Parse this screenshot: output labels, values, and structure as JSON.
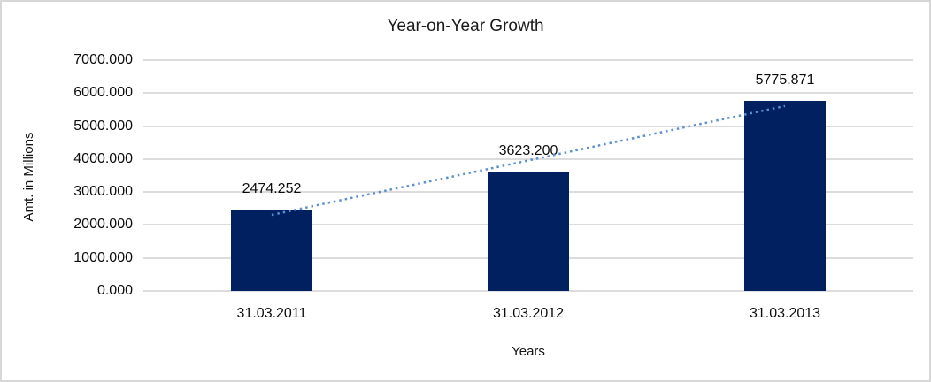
{
  "chart_data": {
    "type": "bar",
    "title": "Year-on-Year Growth",
    "xlabel": "Years",
    "ylabel": "Amt. in Millions",
    "categories": [
      "31.03.2011",
      "31.03.2012",
      "31.03.2013"
    ],
    "values": [
      2474.252,
      3623.2,
      5775.871
    ],
    "data_labels": [
      "2474.252",
      "3623.200",
      "5775.871"
    ],
    "ylim": [
      0,
      7000
    ],
    "ytick_labels": [
      "7000.000",
      "6000.000",
      "5000.000",
      "4000.000",
      "3000.000",
      "2000.000",
      "1000.000",
      "0.000"
    ],
    "grid": "horizontal",
    "legend": "none",
    "trendline": {
      "type": "linear",
      "style": "dotted"
    },
    "colors": {
      "bar": "#002060",
      "gridline": "#dcdcdc",
      "trendline": "#5b8fd0",
      "text": "#0d0d0d"
    }
  }
}
